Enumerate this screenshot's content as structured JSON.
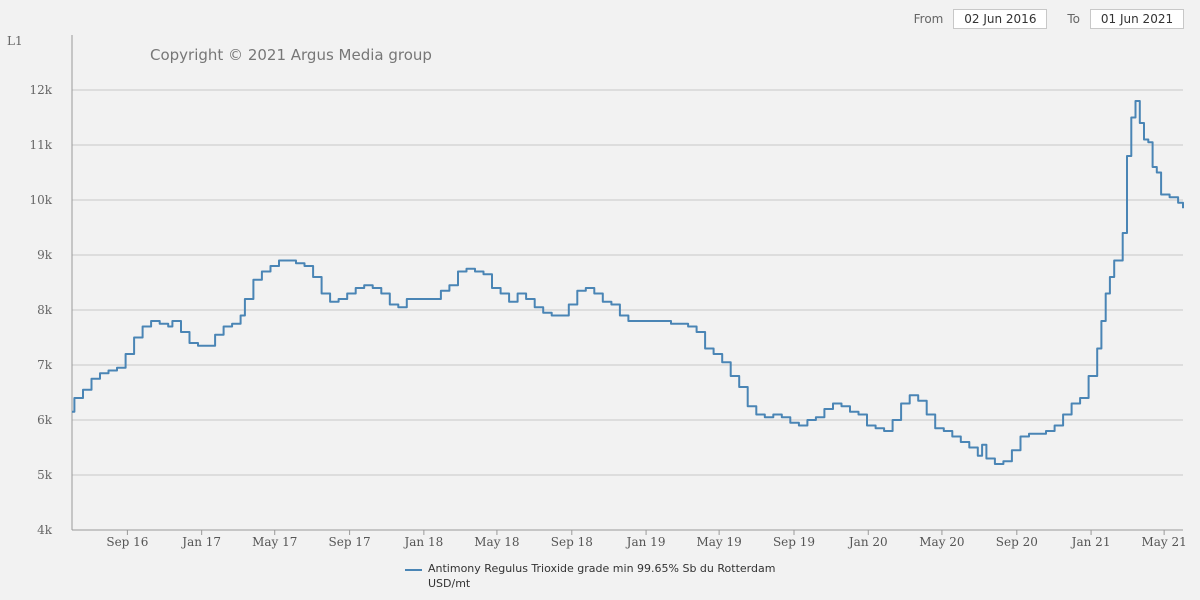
{
  "range": {
    "from_label": "From",
    "from_value": "02 Jun 2016",
    "to_label": "To",
    "to_value": "01 Jun 2021"
  },
  "colors": {
    "line": "#4a85b5",
    "grid": "#c8c8c8",
    "background": "#f2f2f2"
  },
  "chart_data": {
    "type": "line",
    "title": "",
    "xlabel": "",
    "ylabel": "L1",
    "copyright": "Copyright © 2021 Argus Media group",
    "ylim": [
      4000,
      13000
    ],
    "xlim": [
      "2016-06-02",
      "2021-06-01"
    ],
    "yticks": [
      {
        "value": 4000,
        "label": "4k"
      },
      {
        "value": 5000,
        "label": "5k"
      },
      {
        "value": 6000,
        "label": "6k"
      },
      {
        "value": 7000,
        "label": "7k"
      },
      {
        "value": 8000,
        "label": "8k"
      },
      {
        "value": 9000,
        "label": "9k"
      },
      {
        "value": 10000,
        "label": "10k"
      },
      {
        "value": 11000,
        "label": "11k"
      },
      {
        "value": 12000,
        "label": "12k"
      }
    ],
    "xticks": [
      {
        "date": "2016-09-01",
        "label": "Sep 16"
      },
      {
        "date": "2017-01-01",
        "label": "Jan 17"
      },
      {
        "date": "2017-05-01",
        "label": "May 17"
      },
      {
        "date": "2017-09-01",
        "label": "Sep 17"
      },
      {
        "date": "2018-01-01",
        "label": "Jan 18"
      },
      {
        "date": "2018-05-01",
        "label": "May 18"
      },
      {
        "date": "2018-09-01",
        "label": "Sep 18"
      },
      {
        "date": "2019-01-01",
        "label": "Jan 19"
      },
      {
        "date": "2019-05-01",
        "label": "May 19"
      },
      {
        "date": "2019-09-01",
        "label": "Sep 19"
      },
      {
        "date": "2020-01-01",
        "label": "Jan 20"
      },
      {
        "date": "2020-05-01",
        "label": "May 20"
      },
      {
        "date": "2020-09-01",
        "label": "Sep 20"
      },
      {
        "date": "2021-01-01",
        "label": "Jan 21"
      },
      {
        "date": "2021-05-01",
        "label": "May 21"
      }
    ],
    "grid": true,
    "legend_position": "bottom",
    "series": [
      {
        "name": "Antimony Regulus Trioxide grade min 99.65% Sb du Rotterdam",
        "unit": "USD/mt",
        "points": [
          [
            "2016-06-02",
            6150
          ],
          [
            "2016-06-06",
            6400
          ],
          [
            "2016-06-20",
            6550
          ],
          [
            "2016-07-04",
            6750
          ],
          [
            "2016-07-18",
            6850
          ],
          [
            "2016-08-01",
            6900
          ],
          [
            "2016-08-15",
            6950
          ],
          [
            "2016-08-29",
            7200
          ],
          [
            "2016-09-12",
            7500
          ],
          [
            "2016-09-26",
            7700
          ],
          [
            "2016-10-10",
            7800
          ],
          [
            "2016-10-24",
            7750
          ],
          [
            "2016-11-07",
            7700
          ],
          [
            "2016-11-14",
            7800
          ],
          [
            "2016-11-28",
            7600
          ],
          [
            "2016-12-12",
            7400
          ],
          [
            "2016-12-26",
            7350
          ],
          [
            "2017-01-09",
            7350
          ],
          [
            "2017-01-23",
            7550
          ],
          [
            "2017-02-06",
            7700
          ],
          [
            "2017-02-20",
            7750
          ],
          [
            "2017-03-06",
            7900
          ],
          [
            "2017-03-13",
            8200
          ],
          [
            "2017-03-27",
            8550
          ],
          [
            "2017-04-10",
            8700
          ],
          [
            "2017-04-24",
            8800
          ],
          [
            "2017-05-08",
            8900
          ],
          [
            "2017-05-22",
            8900
          ],
          [
            "2017-06-05",
            8850
          ],
          [
            "2017-06-19",
            8800
          ],
          [
            "2017-07-03",
            8600
          ],
          [
            "2017-07-17",
            8300
          ],
          [
            "2017-07-31",
            8150
          ],
          [
            "2017-08-14",
            8200
          ],
          [
            "2017-08-28",
            8300
          ],
          [
            "2017-09-11",
            8400
          ],
          [
            "2017-09-25",
            8450
          ],
          [
            "2017-10-09",
            8400
          ],
          [
            "2017-10-23",
            8300
          ],
          [
            "2017-11-06",
            8100
          ],
          [
            "2017-11-20",
            8050
          ],
          [
            "2017-12-04",
            8200
          ],
          [
            "2017-12-18",
            8200
          ],
          [
            "2018-01-01",
            8200
          ],
          [
            "2018-01-15",
            8200
          ],
          [
            "2018-01-29",
            8350
          ],
          [
            "2018-02-12",
            8450
          ],
          [
            "2018-02-26",
            8700
          ],
          [
            "2018-03-12",
            8750
          ],
          [
            "2018-03-26",
            8700
          ],
          [
            "2018-04-09",
            8650
          ],
          [
            "2018-04-23",
            8400
          ],
          [
            "2018-05-07",
            8300
          ],
          [
            "2018-05-21",
            8150
          ],
          [
            "2018-06-04",
            8300
          ],
          [
            "2018-06-18",
            8200
          ],
          [
            "2018-07-02",
            8050
          ],
          [
            "2018-07-16",
            7950
          ],
          [
            "2018-07-30",
            7900
          ],
          [
            "2018-08-13",
            7900
          ],
          [
            "2018-08-27",
            8100
          ],
          [
            "2018-09-10",
            8350
          ],
          [
            "2018-09-24",
            8400
          ],
          [
            "2018-10-08",
            8300
          ],
          [
            "2018-10-22",
            8150
          ],
          [
            "2018-11-05",
            8100
          ],
          [
            "2018-11-19",
            7900
          ],
          [
            "2018-12-03",
            7800
          ],
          [
            "2018-12-17",
            7800
          ],
          [
            "2019-01-07",
            7800
          ],
          [
            "2019-01-28",
            7800
          ],
          [
            "2019-02-11",
            7750
          ],
          [
            "2019-02-25",
            7750
          ],
          [
            "2019-03-11",
            7700
          ],
          [
            "2019-03-25",
            7600
          ],
          [
            "2019-04-08",
            7300
          ],
          [
            "2019-04-22",
            7200
          ],
          [
            "2019-05-06",
            7050
          ],
          [
            "2019-05-20",
            6800
          ],
          [
            "2019-06-03",
            6600
          ],
          [
            "2019-06-17",
            6250
          ],
          [
            "2019-07-01",
            6100
          ],
          [
            "2019-07-15",
            6050
          ],
          [
            "2019-07-29",
            6100
          ],
          [
            "2019-08-12",
            6050
          ],
          [
            "2019-08-26",
            5950
          ],
          [
            "2019-09-09",
            5900
          ],
          [
            "2019-09-23",
            6000
          ],
          [
            "2019-10-07",
            6050
          ],
          [
            "2019-10-21",
            6200
          ],
          [
            "2019-11-04",
            6300
          ],
          [
            "2019-11-18",
            6250
          ],
          [
            "2019-12-02",
            6150
          ],
          [
            "2019-12-16",
            6100
          ],
          [
            "2019-12-30",
            5900
          ],
          [
            "2020-01-13",
            5850
          ],
          [
            "2020-01-27",
            5800
          ],
          [
            "2020-02-10",
            6000
          ],
          [
            "2020-02-24",
            6300
          ],
          [
            "2020-03-09",
            6450
          ],
          [
            "2020-03-23",
            6350
          ],
          [
            "2020-04-06",
            6100
          ],
          [
            "2020-04-20",
            5850
          ],
          [
            "2020-05-04",
            5800
          ],
          [
            "2020-05-18",
            5700
          ],
          [
            "2020-06-01",
            5600
          ],
          [
            "2020-06-15",
            5500
          ],
          [
            "2020-06-29",
            5350
          ],
          [
            "2020-07-06",
            5550
          ],
          [
            "2020-07-13",
            5300
          ],
          [
            "2020-07-27",
            5200
          ],
          [
            "2020-08-10",
            5250
          ],
          [
            "2020-08-24",
            5450
          ],
          [
            "2020-09-07",
            5700
          ],
          [
            "2020-09-21",
            5750
          ],
          [
            "2020-10-05",
            5750
          ],
          [
            "2020-10-19",
            5800
          ],
          [
            "2020-11-02",
            5900
          ],
          [
            "2020-11-16",
            6100
          ],
          [
            "2020-11-30",
            6300
          ],
          [
            "2020-12-14",
            6400
          ],
          [
            "2020-12-28",
            6800
          ],
          [
            "2021-01-11",
            7300
          ],
          [
            "2021-01-18",
            7800
          ],
          [
            "2021-01-25",
            8300
          ],
          [
            "2021-02-01",
            8600
          ],
          [
            "2021-02-08",
            8900
          ],
          [
            "2021-02-22",
            9400
          ],
          [
            "2021-03-01",
            10800
          ],
          [
            "2021-03-08",
            11500
          ],
          [
            "2021-03-15",
            11800
          ],
          [
            "2021-03-22",
            11400
          ],
          [
            "2021-03-29",
            11100
          ],
          [
            "2021-04-05",
            11050
          ],
          [
            "2021-04-12",
            10600
          ],
          [
            "2021-04-19",
            10500
          ],
          [
            "2021-04-26",
            10100
          ],
          [
            "2021-05-10",
            10050
          ],
          [
            "2021-05-24",
            9950
          ],
          [
            "2021-06-01",
            9850
          ]
        ]
      }
    ]
  }
}
